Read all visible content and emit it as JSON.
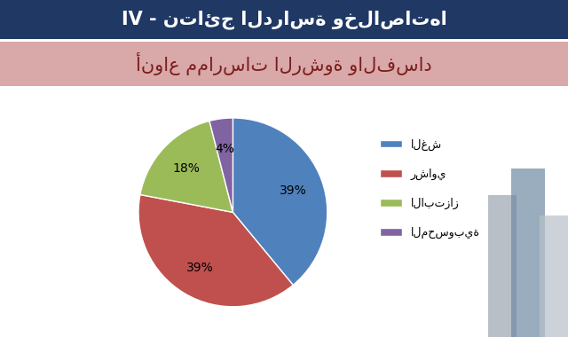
{
  "chart_data": {
    "type": "pie",
    "title": "IV - نتائج الدراسة وخلاصاتها",
    "subtitle": "أنواع ممارسات الرشوة والفساد",
    "categories": [
      "الغش",
      "رشاوي",
      "الابتزاز",
      "المحسوبية"
    ],
    "values": [
      39,
      39,
      18,
      4
    ],
    "value_labels": [
      "39%",
      "39%",
      "18%",
      "4%"
    ],
    "colors": [
      "#4f81bd",
      "#c0504d",
      "#9bbb59",
      "#8064a2"
    ],
    "data_labels": true,
    "legend": "right"
  }
}
